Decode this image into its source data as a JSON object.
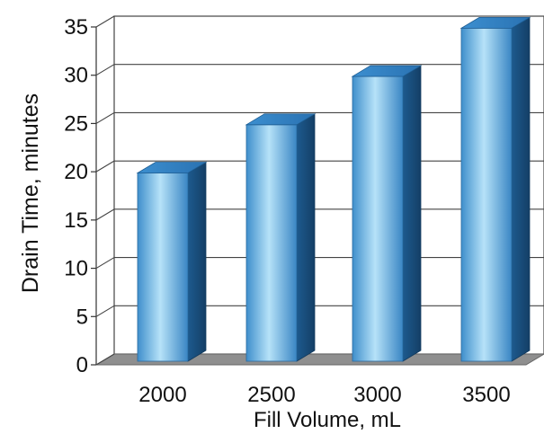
{
  "chart_data": {
    "type": "bar",
    "categories": [
      "2000",
      "2500",
      "3000",
      "3500"
    ],
    "values": [
      19.5,
      24.5,
      29.5,
      34.5
    ],
    "title": "",
    "xlabel": "Fill Volume, mL",
    "ylabel": "Drain Time, minutes",
    "ylim": [
      0,
      35
    ],
    "yticks": [
      "0",
      "5",
      "10",
      "15",
      "20",
      "25",
      "30",
      "35"
    ],
    "grid": true,
    "legend": "none",
    "colors": {
      "bar_light": "#a9dcf7",
      "bar_mid": "#4aa0d8",
      "bar_dark": "#1f5f95",
      "bar_top": "#3a8fd0",
      "floor": "#8f8f8f",
      "grid": "#444444"
    }
  }
}
